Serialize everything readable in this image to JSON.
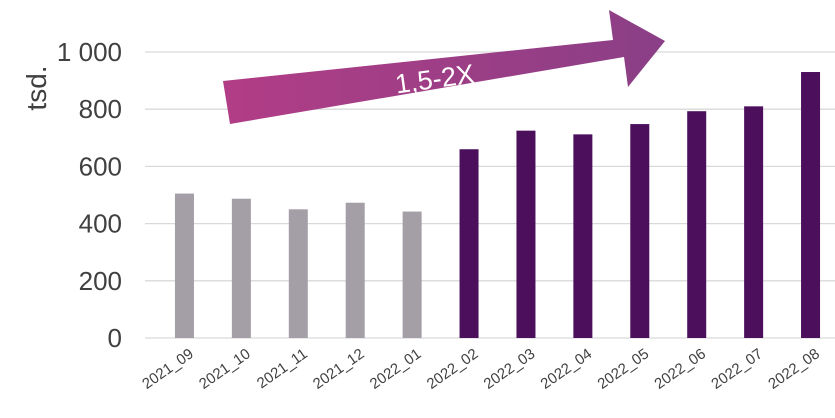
{
  "chart_data": {
    "type": "bar",
    "title": "",
    "xlabel": "",
    "ylabel": "tsd.",
    "ylim": [
      0,
      1000
    ],
    "yticks": [
      {
        "value": 0,
        "label": "0"
      },
      {
        "value": 200,
        "label": "200"
      },
      {
        "value": 400,
        "label": "400"
      },
      {
        "value": 600,
        "label": "600"
      },
      {
        "value": 800,
        "label": "800"
      },
      {
        "value": 1000,
        "label": "1 000"
      }
    ],
    "grid": true,
    "legend": "none",
    "categories": [
      "2021_09",
      "2021_10",
      "2021_11",
      "2021_12",
      "2022_01",
      "2022_02",
      "2022_03",
      "2022_04",
      "2022_05",
      "2022_06",
      "2022_07",
      "2022_08"
    ],
    "values": [
      505,
      487,
      450,
      473,
      442,
      660,
      725,
      712,
      748,
      793,
      810,
      930
    ],
    "bar_colors": [
      "#a49ea6",
      "#a49ea6",
      "#a49ea6",
      "#a49ea6",
      "#a49ea6",
      "#4b0f5c",
      "#4b0f5c",
      "#4b0f5c",
      "#4b0f5c",
      "#4b0f5c",
      "#4b0f5c",
      "#4b0f5c"
    ],
    "annotation": {
      "text": "1,5-2X",
      "shape": "up-right arrow",
      "color_start": "#b13d86",
      "color_end": "#8a3f86"
    },
    "colors": {
      "gridline": "#d9d9d9",
      "text": "#404040"
    }
  }
}
